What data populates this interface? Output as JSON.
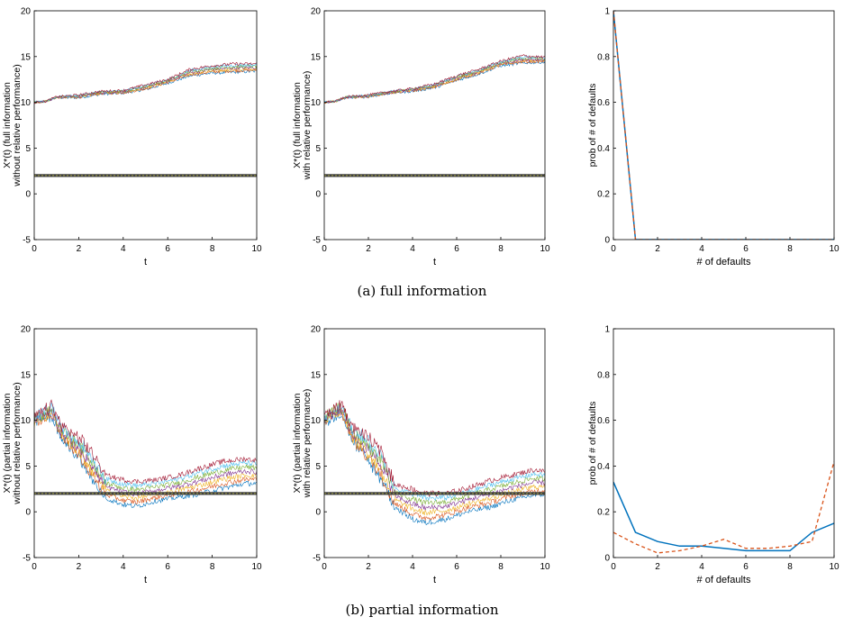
{
  "captions": {
    "a": "(a) full information",
    "b": "(b) partial information"
  },
  "colors": {
    "series": [
      "#0072BD",
      "#D95319",
      "#EDB120",
      "#7E2F8E",
      "#77AC30",
      "#4DBEEE",
      "#A2142F"
    ],
    "threshold": "#404040",
    "axis": "#000000",
    "solid_series": "#0072BD",
    "dashed_series": "#D95319"
  },
  "chart_data": [
    {
      "id": "a-left",
      "type": "line",
      "title": "",
      "xlabel": "t",
      "ylabel_lines": [
        "X*(t) (full information",
        "without relative performance)"
      ],
      "xlim": [
        0,
        10
      ],
      "ylim": [
        -5,
        20
      ],
      "xticks": [
        "0",
        "2",
        "4",
        "6",
        "8",
        "10"
      ],
      "yticks": [
        "-5",
        "0",
        "5",
        "10",
        "15",
        "20"
      ],
      "threshold": 2,
      "paths_min": [
        [
          0,
          10
        ],
        [
          0.5,
          10.1
        ],
        [
          1,
          10.5
        ],
        [
          2,
          10.5
        ],
        [
          3,
          10.9
        ],
        [
          4,
          11.0
        ],
        [
          5,
          11.4
        ],
        [
          6,
          12.1
        ],
        [
          7,
          12.9
        ],
        [
          8,
          13.2
        ],
        [
          9,
          13.3
        ],
        [
          10,
          13.4
        ]
      ],
      "paths_max": [
        [
          0,
          10
        ],
        [
          0.5,
          10.1
        ],
        [
          1,
          10.6
        ],
        [
          2,
          10.8
        ],
        [
          3,
          11.2
        ],
        [
          4,
          11.3
        ],
        [
          5,
          11.9
        ],
        [
          6,
          12.5
        ],
        [
          7,
          13.6
        ],
        [
          8,
          14.0
        ],
        [
          9,
          14.2
        ],
        [
          10,
          14.2
        ]
      ],
      "n_paths": 7
    },
    {
      "id": "a-mid",
      "type": "line",
      "title": "",
      "xlabel": "t",
      "ylabel_lines": [
        "X*(t) (full information",
        "with relative performance)"
      ],
      "xlim": [
        0,
        10
      ],
      "ylim": [
        -5,
        20
      ],
      "xticks": [
        "0",
        "2",
        "4",
        "6",
        "8",
        "10"
      ],
      "yticks": [
        "-5",
        "0",
        "5",
        "10",
        "15",
        "20"
      ],
      "threshold": 2,
      "paths_min": [
        [
          0,
          10
        ],
        [
          0.5,
          10.1
        ],
        [
          1,
          10.5
        ],
        [
          2,
          10.6
        ],
        [
          3,
          11.0
        ],
        [
          4,
          11.2
        ],
        [
          5,
          11.6
        ],
        [
          6,
          12.4
        ],
        [
          7,
          13.1
        ],
        [
          8,
          14.0
        ],
        [
          9,
          14.3
        ],
        [
          10,
          14.4
        ]
      ],
      "paths_max": [
        [
          0,
          10
        ],
        [
          0.5,
          10.1
        ],
        [
          1,
          10.6
        ],
        [
          2,
          10.8
        ],
        [
          3,
          11.2
        ],
        [
          4,
          11.5
        ],
        [
          5,
          12.0
        ],
        [
          6,
          12.9
        ],
        [
          7,
          13.6
        ],
        [
          8,
          14.5
        ],
        [
          9,
          15.1
        ],
        [
          10,
          14.9
        ]
      ],
      "n_paths": 7
    },
    {
      "id": "a-right",
      "type": "line",
      "title": "",
      "xlabel": "# of defaults",
      "ylabel_lines": [
        "prob of # of defaults"
      ],
      "xlim": [
        0,
        10
      ],
      "ylim": [
        0,
        1
      ],
      "xticks": [
        "0",
        "2",
        "4",
        "6",
        "8",
        "10"
      ],
      "yticks": [
        "0",
        "0.2",
        "0.4",
        "0.6",
        "0.8",
        "1"
      ],
      "x": [
        0,
        1,
        2,
        3,
        4,
        5,
        6,
        7,
        8,
        9,
        10
      ],
      "series": [
        {
          "style": "solid",
          "values": [
            1,
            0,
            0,
            0,
            0,
            0,
            0,
            0,
            0,
            0,
            0
          ]
        },
        {
          "style": "dashed",
          "values": [
            1,
            0,
            0,
            0,
            0,
            0,
            0,
            0,
            0,
            0,
            0
          ]
        }
      ]
    },
    {
      "id": "b-left",
      "type": "line",
      "title": "",
      "xlabel": "t",
      "ylabel_lines": [
        "X*(t) (partial information",
        "without relative performance)"
      ],
      "xlim": [
        0,
        10
      ],
      "ylim": [
        -5,
        20
      ],
      "xticks": [
        "0",
        "2",
        "4",
        "6",
        "8",
        "10"
      ],
      "yticks": [
        "-5",
        "0",
        "5",
        "10",
        "15",
        "20"
      ],
      "threshold": 2,
      "paths_min": [
        [
          0,
          9.8
        ],
        [
          0.8,
          10.5
        ],
        [
          1.2,
          8.0
        ],
        [
          2,
          6.0
        ],
        [
          2.6,
          3.5
        ],
        [
          3.2,
          1.5
        ],
        [
          4,
          0.8
        ],
        [
          4.6,
          0.6
        ],
        [
          5.5,
          1.2
        ],
        [
          6.5,
          1.6
        ],
        [
          7.5,
          2.0
        ],
        [
          8.5,
          2.6
        ],
        [
          9.5,
          3.1
        ],
        [
          10,
          3.1
        ]
      ],
      "paths_max": [
        [
          0,
          10.3
        ],
        [
          0.8,
          11.6
        ],
        [
          1.2,
          9.5
        ],
        [
          2,
          8.0
        ],
        [
          2.6,
          6.5
        ],
        [
          3.2,
          4.0
        ],
        [
          4,
          3.5
        ],
        [
          4.6,
          3.3
        ],
        [
          5.5,
          3.5
        ],
        [
          6.5,
          4.0
        ],
        [
          7.5,
          4.8
        ],
        [
          8.5,
          5.5
        ],
        [
          9.5,
          5.8
        ],
        [
          10,
          5.6
        ]
      ],
      "n_paths": 7
    },
    {
      "id": "b-mid",
      "type": "line",
      "title": "",
      "xlabel": "t",
      "ylabel_lines": [
        "X*(t) (partial information",
        "with relative performance)"
      ],
      "xlim": [
        0,
        10
      ],
      "ylim": [
        -5,
        20
      ],
      "xticks": [
        "0",
        "2",
        "4",
        "6",
        "8",
        "10"
      ],
      "yticks": [
        "-5",
        "0",
        "5",
        "10",
        "15",
        "20"
      ],
      "threshold": 2,
      "paths_min": [
        [
          0,
          9.8
        ],
        [
          0.8,
          10.8
        ],
        [
          1.2,
          8.0
        ],
        [
          2,
          5.5
        ],
        [
          2.6,
          3.5
        ],
        [
          3.2,
          0.5
        ],
        [
          4,
          -0.8
        ],
        [
          4.6,
          -1.2
        ],
        [
          5.5,
          -0.8
        ],
        [
          6.5,
          0.0
        ],
        [
          7.5,
          0.5
        ],
        [
          8.5,
          1.3
        ],
        [
          9.5,
          1.8
        ],
        [
          10,
          1.9
        ]
      ],
      "paths_max": [
        [
          0,
          10.5
        ],
        [
          0.8,
          11.8
        ],
        [
          1.2,
          9.5
        ],
        [
          2,
          8.0
        ],
        [
          2.6,
          6.5
        ],
        [
          3.2,
          3.0
        ],
        [
          4,
          2.5
        ],
        [
          4.6,
          2.0
        ],
        [
          5.5,
          2.0
        ],
        [
          6.5,
          2.6
        ],
        [
          7.5,
          3.4
        ],
        [
          8.5,
          4.0
        ],
        [
          9.5,
          4.6
        ],
        [
          10,
          4.4
        ]
      ],
      "n_paths": 7
    },
    {
      "id": "b-right",
      "type": "line",
      "title": "",
      "xlabel": "# of defaults",
      "ylabel_lines": [
        "prob of # of defaults"
      ],
      "xlim": [
        0,
        10
      ],
      "ylim": [
        0,
        1
      ],
      "xticks": [
        "0",
        "2",
        "4",
        "6",
        "8",
        "10"
      ],
      "yticks": [
        "0",
        "0.2",
        "0.4",
        "0.6",
        "0.8",
        "1"
      ],
      "x": [
        0,
        1,
        2,
        3,
        4,
        5,
        6,
        7,
        8,
        9,
        10
      ],
      "series": [
        {
          "style": "solid",
          "values": [
            0.33,
            0.11,
            0.07,
            0.05,
            0.05,
            0.04,
            0.03,
            0.03,
            0.03,
            0.11,
            0.15
          ]
        },
        {
          "style": "dashed",
          "values": [
            0.11,
            0.06,
            0.02,
            0.03,
            0.05,
            0.08,
            0.04,
            0.04,
            0.05,
            0.07,
            0.42
          ]
        }
      ]
    }
  ]
}
